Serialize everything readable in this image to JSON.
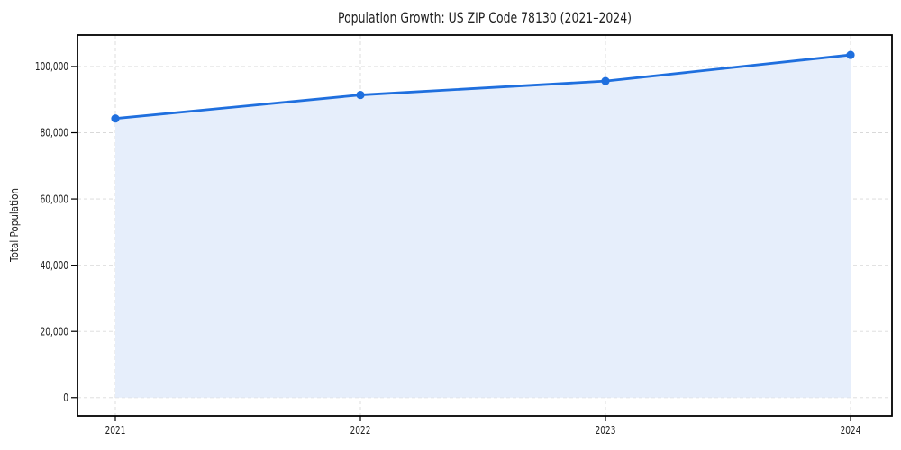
{
  "figure": {
    "background": "#ffffff"
  },
  "chart_data": {
    "type": "line",
    "title": "Population Growth: US ZIP Code 78130 (2021–2024)",
    "xlabel": "",
    "ylabel": "Total Population",
    "categories": [
      "2021",
      "2022",
      "2023",
      "2024"
    ],
    "series": [
      {
        "name": "Total Population",
        "values": [
          84300,
          91400,
          95600,
          103500
        ]
      }
    ],
    "ylim": [
      -5500,
      109500
    ],
    "yticks": [
      0,
      20000,
      40000,
      60000,
      80000,
      100000
    ],
    "ytick_labels": [
      "0",
      "20,000",
      "40,000",
      "60,000",
      "80,000",
      "100,000"
    ],
    "grid": true,
    "grid_style": "dashed",
    "legend": "none",
    "marker": "circle",
    "area_fill": true
  },
  "colors": {
    "line": "#1f6fde",
    "marker": "#1f6fde",
    "area_fill": "#e6eefb",
    "grid": "#d9d9d9",
    "axis": "#000000",
    "tick": "#000000",
    "text": "#1f1f1f"
  }
}
